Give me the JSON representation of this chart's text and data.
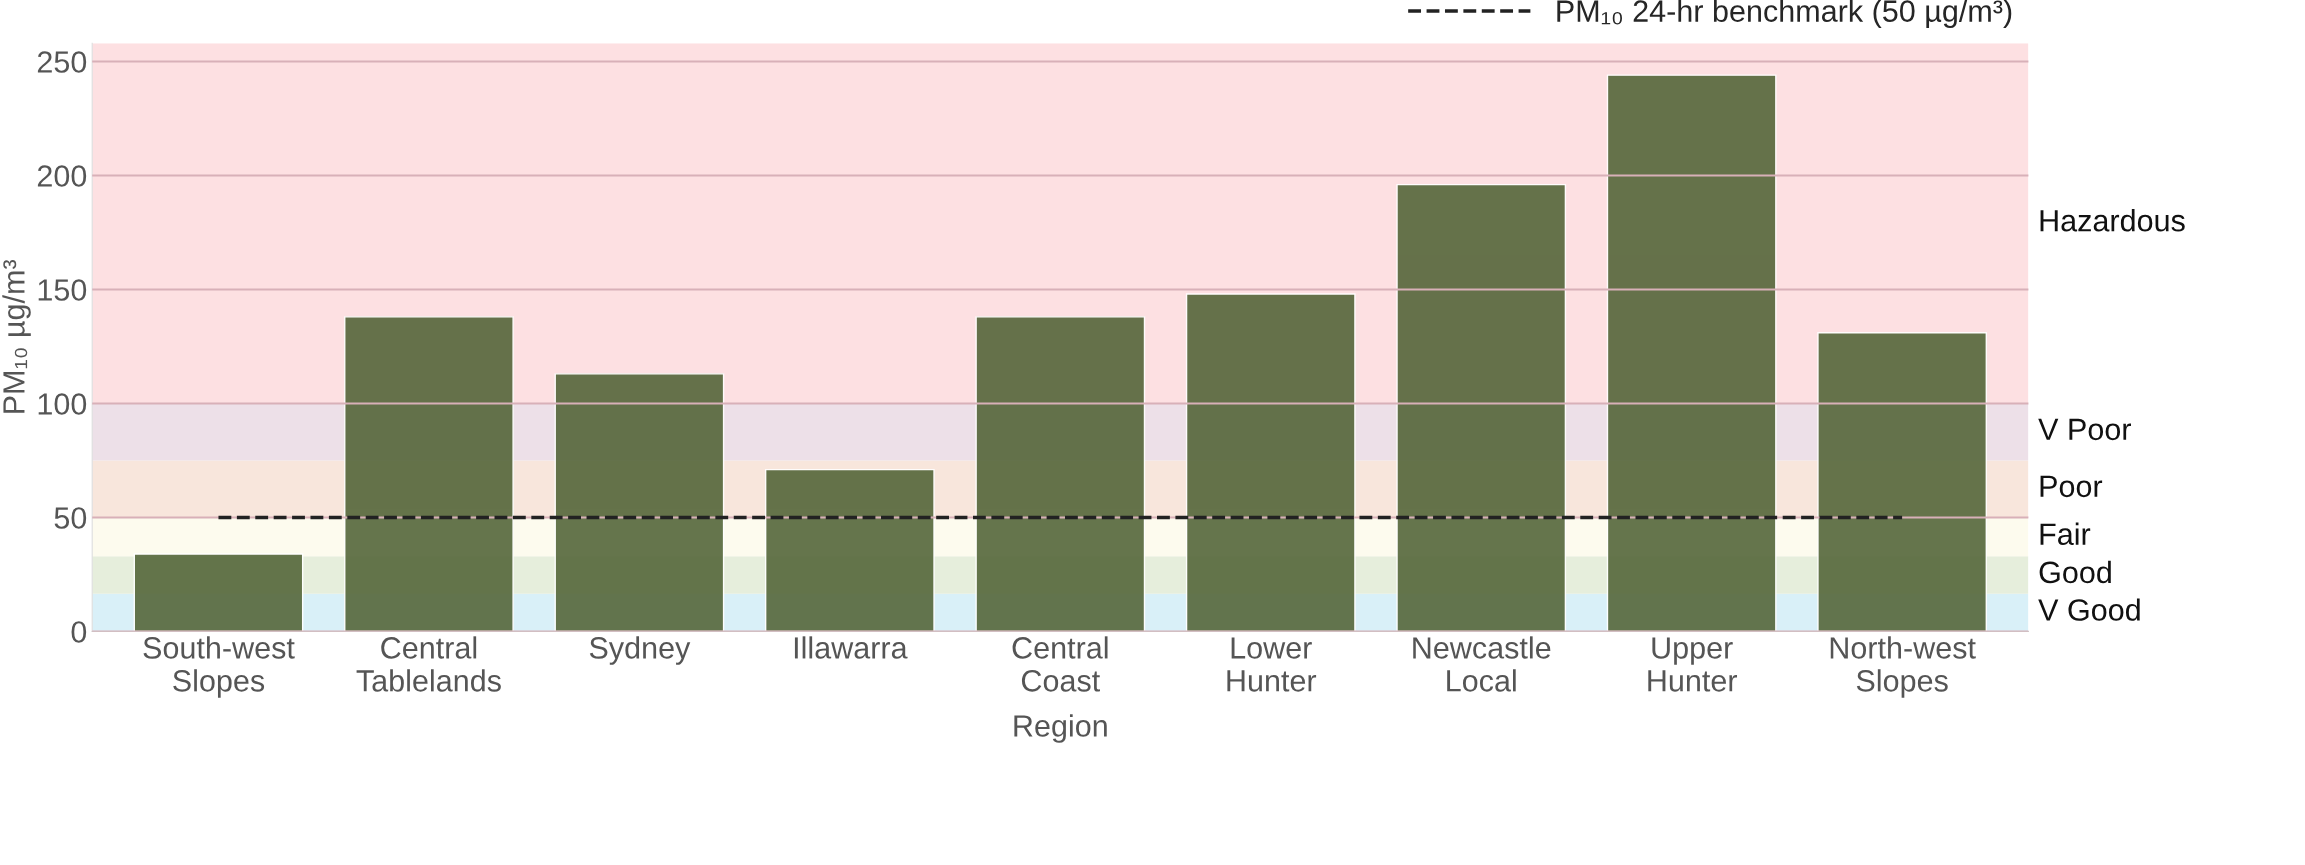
{
  "chart_data": {
    "type": "bar",
    "xlabel": "Region",
    "ylabel": "PM₁₀ µg/m³",
    "categories": [
      "South-west\nSlopes",
      "Central\nTablelands",
      "Sydney",
      "Illawarra",
      "Central\nCoast",
      "Lower\nHunter",
      "Newcastle\nLocal",
      "Upper\nHunter",
      "North-west\nSlopes"
    ],
    "series": [
      {
        "color": "#55663a",
        "values": [
          34,
          138,
          113,
          71,
          138,
          148,
          196,
          244,
          131
        ]
      }
    ],
    "ylim": [
      0,
      258
    ],
    "yticks": [
      0,
      50,
      100,
      150,
      200,
      250
    ],
    "grid": "y",
    "bands": [
      {
        "axis": "y",
        "from": 0,
        "to": 16.5,
        "label": "V Good",
        "color": "#d9f0f8"
      },
      {
        "axis": "y",
        "from": 16.5,
        "to": 33,
        "label": "Good",
        "color": "#e6eedc"
      },
      {
        "axis": "y",
        "from": 33,
        "to": 50,
        "label": "Fair",
        "color": "#fdfbee"
      },
      {
        "axis": "y",
        "from": 50,
        "to": 75,
        "label": "Poor",
        "color": "#f8e6dc"
      },
      {
        "axis": "y",
        "from": 75,
        "to": 100,
        "label": "V Poor",
        "color": "#ede0e8"
      },
      {
        "axis": "y",
        "from": 100,
        "to": 258,
        "label": "Hazardous",
        "color": "#fde0e2"
      }
    ],
    "ref_lines": [
      {
        "axis": "y",
        "value": 50,
        "label": "PM₁₀ 24-hr benchmark (50 µg/m³)",
        "color": "#222222",
        "line_style": "dashed"
      }
    ],
    "legend": "top right"
  }
}
